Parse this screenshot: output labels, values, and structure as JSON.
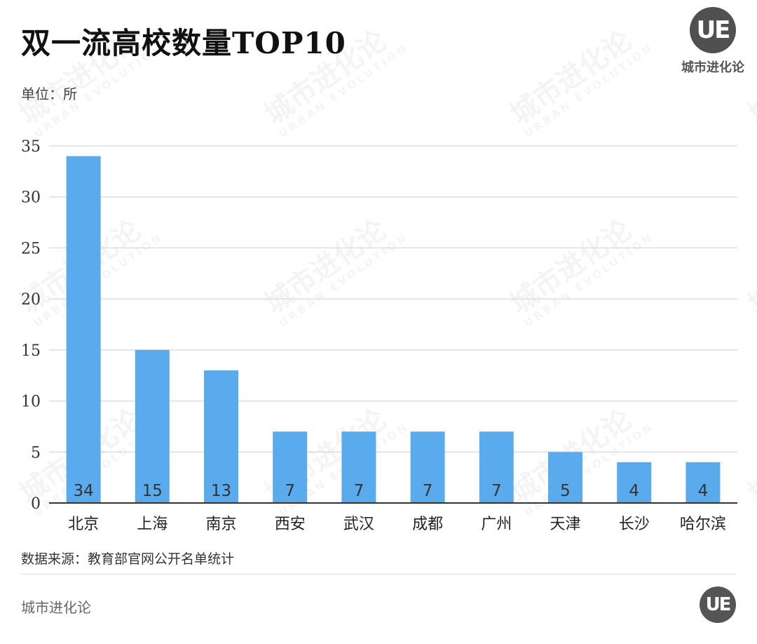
{
  "title": "双一流高校数量TOP10",
  "unit_label": "单位：所",
  "logo": {
    "mark": "UE",
    "name": "城市进化论"
  },
  "source": "数据来源：教育部官网公开名单统计",
  "footer": {
    "brand": "城市进化论",
    "mark": "UE"
  },
  "watermark": {
    "cn": "城市进化论",
    "en": "URBAN EVOLUTION"
  },
  "colors": {
    "bar": "#5aabee",
    "grid": "#dddddd",
    "axis": "#333333"
  },
  "chart_data": {
    "type": "bar",
    "categories": [
      "北京",
      "上海",
      "南京",
      "西安",
      "武汉",
      "成都",
      "广州",
      "天津",
      "长沙",
      "哈尔滨"
    ],
    "values": [
      34,
      15,
      13,
      7,
      7,
      7,
      7,
      5,
      4,
      4
    ],
    "title": "双一流高校数量TOP10",
    "ylabel": "单位：所",
    "ylim": [
      0,
      35
    ],
    "yticks": [
      0,
      5,
      10,
      15,
      20,
      25,
      30,
      35
    ],
    "grid": true,
    "data_labels": "inside-bottom"
  }
}
